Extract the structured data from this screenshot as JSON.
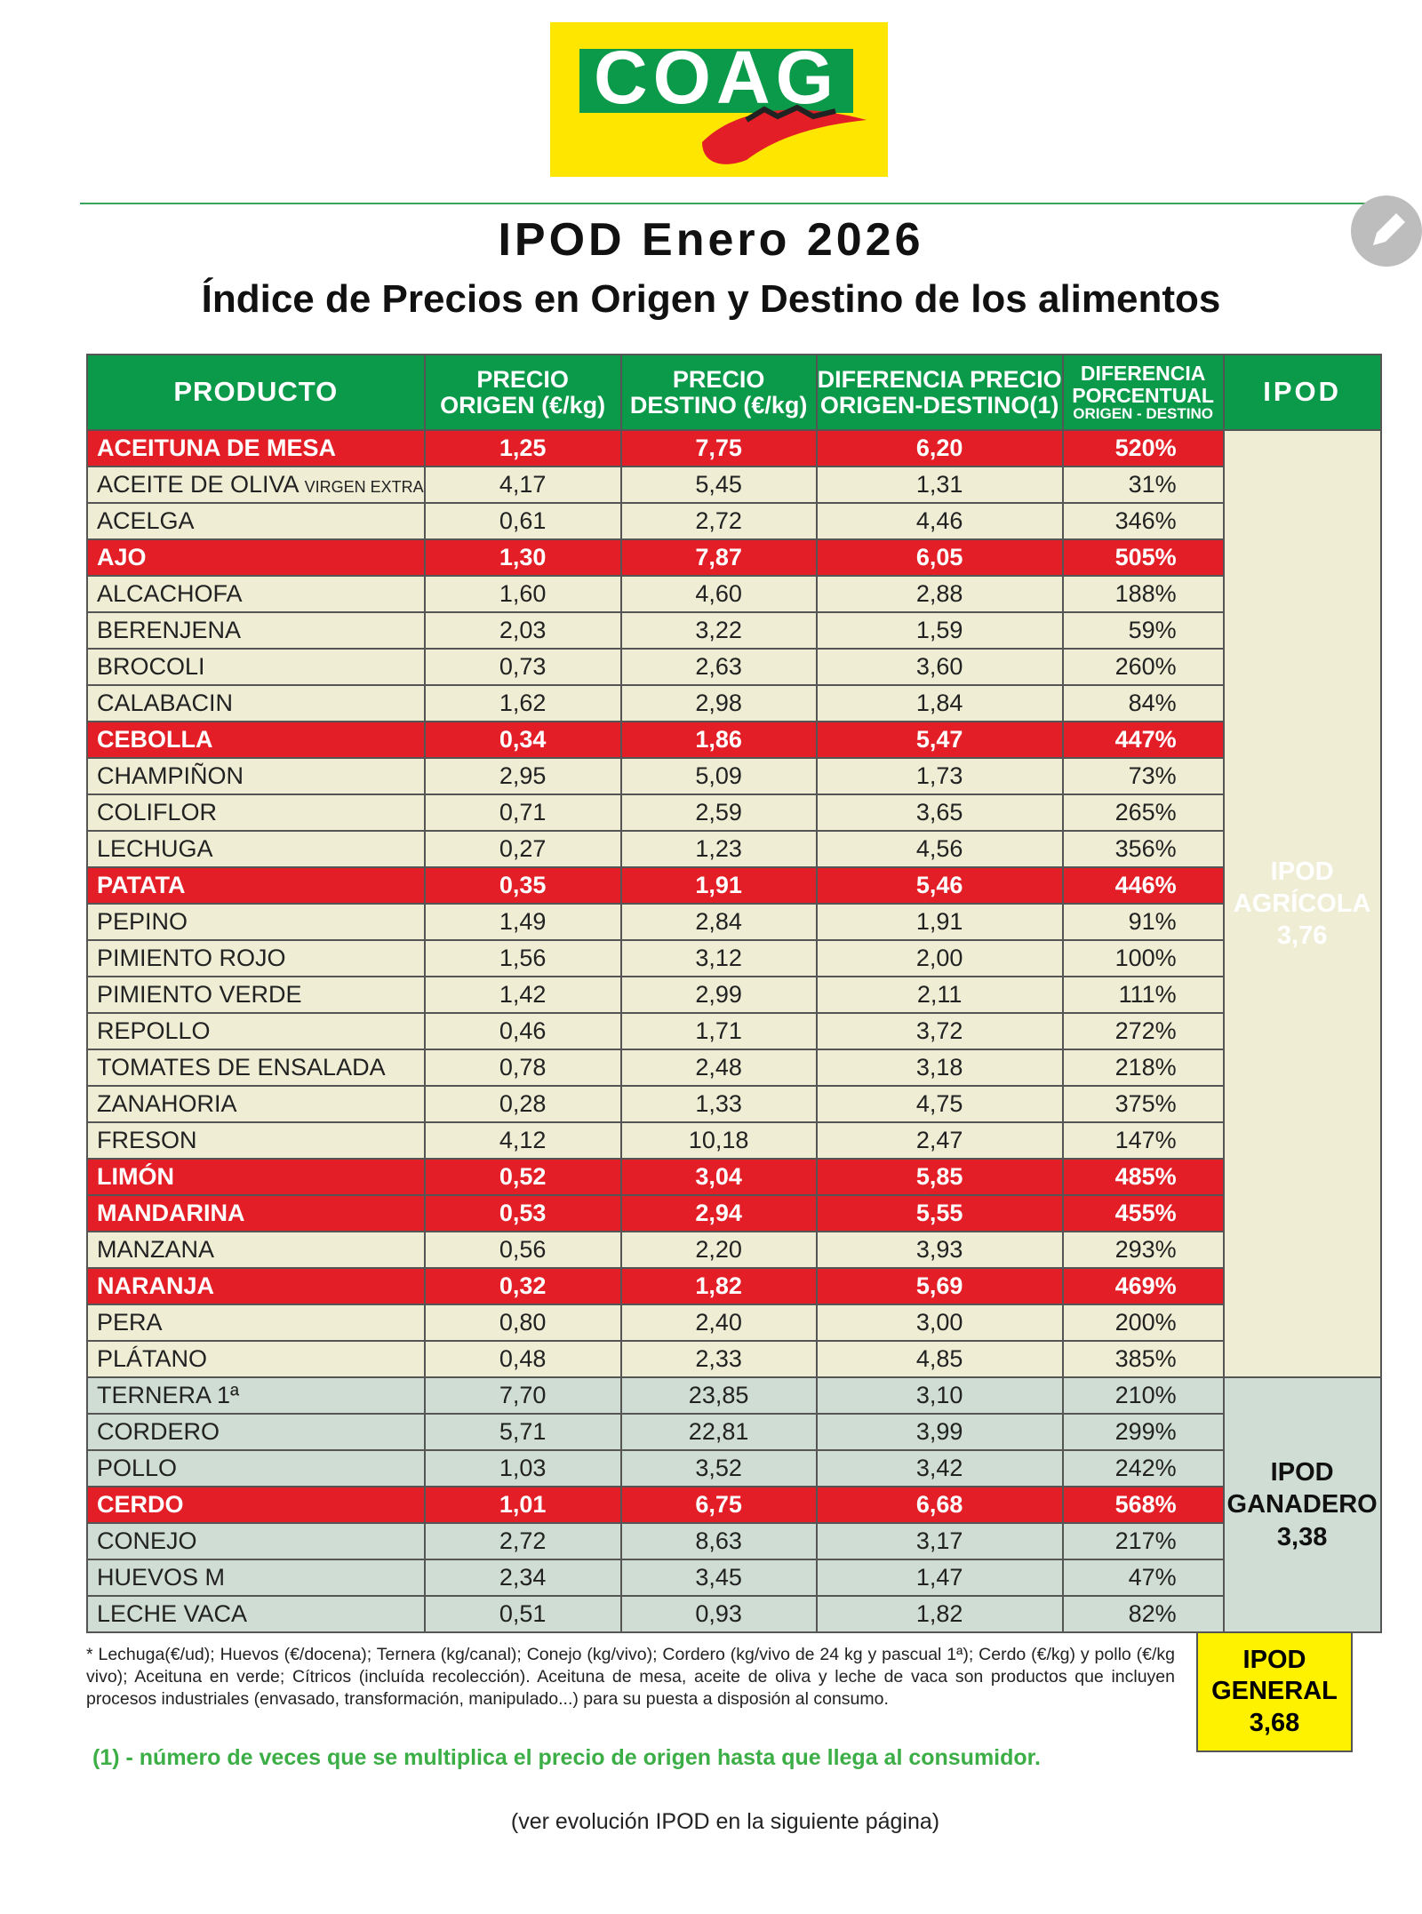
{
  "logo": "COAG",
  "header": {
    "title": "IPOD Enero 2026",
    "subtitle": "Índice de Precios en Origen y Destino de los alimentos"
  },
  "table": {
    "columns": [
      {
        "lines": [
          "PRODUCTO"
        ]
      },
      {
        "lines": [
          "PRECIO",
          "ORIGEN (€/kg)"
        ]
      },
      {
        "lines": [
          "PRECIO",
          "DESTINO (€/kg)"
        ]
      },
      {
        "lines": [
          "DIFERENCIA PRECIO",
          "ORIGEN-DESTINO(1)"
        ]
      },
      {
        "lines": [
          "DIFERENCIA",
          "PORCENTUAL",
          "ORIGEN - DESTINO"
        ]
      },
      {
        "lines": [
          "IPOD"
        ]
      }
    ],
    "header_color": "#0b9a4a",
    "highlight_color": "#e31e26",
    "groups": [
      {
        "label": [
          "IPOD",
          "AGRÍCOLA",
          "3,76"
        ],
        "color": "#efeed5",
        "rows": [
          {
            "cells": [
              "ACEITUNA DE MESA",
              "1,25",
              "7,75",
              "6,20",
              "520%"
            ],
            "highlight": true
          },
          {
            "cells": [
              "ACEITE DE OLIVA",
              "4,17",
              "5,45",
              "1,31",
              "31%"
            ],
            "detail": "VIRGEN EXTRA",
            "highlight": false
          },
          {
            "cells": [
              "ACELGA",
              "0,61",
              "2,72",
              "4,46",
              "346%"
            ],
            "highlight": false
          },
          {
            "cells": [
              "AJO",
              "1,30",
              "7,87",
              "6,05",
              "505%"
            ],
            "highlight": true
          },
          {
            "cells": [
              "ALCACHOFA",
              "1,60",
              "4,60",
              "2,88",
              "188%"
            ],
            "highlight": false
          },
          {
            "cells": [
              "BERENJENA",
              "2,03",
              "3,22",
              "1,59",
              "59%"
            ],
            "highlight": false
          },
          {
            "cells": [
              "BROCOLI",
              "0,73",
              "2,63",
              "3,60",
              "260%"
            ],
            "highlight": false
          },
          {
            "cells": [
              "CALABACIN",
              "1,62",
              "2,98",
              "1,84",
              "84%"
            ],
            "highlight": false
          },
          {
            "cells": [
              "CEBOLLA",
              "0,34",
              "1,86",
              "5,47",
              "447%"
            ],
            "highlight": true
          },
          {
            "cells": [
              "CHAMPIÑON",
              "2,95",
              "5,09",
              "1,73",
              "73%"
            ],
            "highlight": false
          },
          {
            "cells": [
              "COLIFLOR",
              "0,71",
              "2,59",
              "3,65",
              "265%"
            ],
            "highlight": false
          },
          {
            "cells": [
              "LECHUGA",
              "0,27",
              "1,23",
              "4,56",
              "356%"
            ],
            "highlight": false
          },
          {
            "cells": [
              "PATATA",
              "0,35",
              "1,91",
              "5,46",
              "446%"
            ],
            "highlight": true
          },
          {
            "cells": [
              "PEPINO",
              "1,49",
              "2,84",
              "1,91",
              "91%"
            ],
            "highlight": false
          },
          {
            "cells": [
              "PIMIENTO ROJO",
              "1,56",
              "3,12",
              "2,00",
              "100%"
            ],
            "highlight": false
          },
          {
            "cells": [
              "PIMIENTO VERDE",
              "1,42",
              "2,99",
              "2,11",
              "111%"
            ],
            "highlight": false
          },
          {
            "cells": [
              "REPOLLO",
              "0,46",
              "1,71",
              "3,72",
              "272%"
            ],
            "highlight": false
          },
          {
            "cells": [
              "TOMATES DE ENSALADA",
              "0,78",
              "2,48",
              "3,18",
              "218%"
            ],
            "highlight": false
          },
          {
            "cells": [
              "ZANAHORIA",
              "0,28",
              "1,33",
              "4,75",
              "375%"
            ],
            "highlight": false
          },
          {
            "cells": [
              "FRESON",
              "4,12",
              "10,18",
              "2,47",
              "147%"
            ],
            "highlight": false
          },
          {
            "cells": [
              "LIMÓN",
              "0,52",
              "3,04",
              "5,85",
              "485%"
            ],
            "highlight": true
          },
          {
            "cells": [
              "MANDARINA",
              "0,53",
              "2,94",
              "5,55",
              "455%"
            ],
            "highlight": true
          },
          {
            "cells": [
              "MANZANA",
              "0,56",
              "2,20",
              "3,93",
              "293%"
            ],
            "highlight": false
          },
          {
            "cells": [
              "NARANJA",
              "0,32",
              "1,82",
              "5,69",
              "469%"
            ],
            "highlight": true
          },
          {
            "cells": [
              "PERA",
              "0,80",
              "2,40",
              "3,00",
              "200%"
            ],
            "highlight": false
          },
          {
            "cells": [
              "PLÁTANO",
              "0,48",
              "2,33",
              "4,85",
              "385%"
            ],
            "highlight": false
          }
        ]
      },
      {
        "label": [
          "IPOD",
          "GANADERO",
          "3,38"
        ],
        "color": "#cfddd4",
        "rows": [
          {
            "cells": [
              "TERNERA 1ª",
              "7,70",
              "23,85",
              "3,10",
              "210%"
            ],
            "highlight": false
          },
          {
            "cells": [
              "CORDERO",
              "5,71",
              "22,81",
              "3,99",
              "299%"
            ],
            "highlight": false
          },
          {
            "cells": [
              "POLLO",
              "1,03",
              "3,52",
              "3,42",
              "242%"
            ],
            "highlight": false
          },
          {
            "cells": [
              "CERDO",
              "1,01",
              "6,75",
              "6,68",
              "568%"
            ],
            "highlight": true
          },
          {
            "cells": [
              "CONEJO",
              "2,72",
              "8,63",
              "3,17",
              "217%"
            ],
            "highlight": false
          },
          {
            "cells": [
              "HUEVOS M",
              "2,34",
              "3,45",
              "1,47",
              "47%"
            ],
            "highlight": false
          },
          {
            "cells": [
              "LECHE VACA",
              "0,51",
              "0,93",
              "1,82",
              "82%"
            ],
            "highlight": false
          }
        ]
      }
    ],
    "general": {
      "label": [
        "IPOD",
        "GENERAL",
        "3,68"
      ],
      "color": "#fff200"
    }
  },
  "footnote": "* Lechuga(€/ud); Huevos (€/docena); Ternera (kg/canal); Conejo (kg/vivo); Cordero (kg/vivo de 24 kg y pascual 1ª); Cerdo (€/kg) y pollo (€/kg vivo); Aceituna en verde; Cítricos (incluída recolección). Aceituna de mesa, aceite de oliva y leche de vaca son productos que incluyen procesos industriales (envasado, transformación, manipulado...) para su puesta a disposión al consumo.",
  "note": "(1) - número de veces que se multiplica el precio de origen hasta que llega al consumidor.",
  "footer": "(ver evolución IPOD en la siguiente página)"
}
